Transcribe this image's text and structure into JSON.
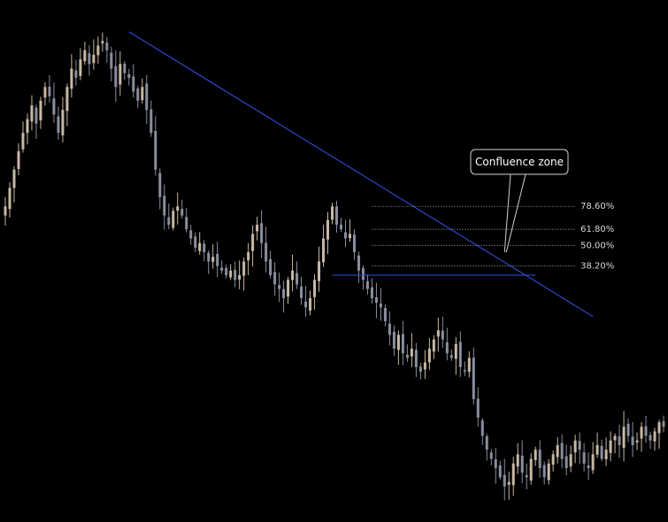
{
  "chart_data": {
    "type": "candlestick",
    "theme": {
      "background": "#000000",
      "bull_color": "#c8b8a4",
      "bear_color": "#8a8e9e",
      "trendline_color": "#2f47c9",
      "fib_color": "#cfcfcf"
    },
    "grid": false,
    "ylim": [
      0,
      100
    ],
    "x_count": 150,
    "closes": [
      62,
      66,
      70,
      74,
      78,
      81,
      84,
      80,
      85,
      88,
      86,
      82,
      78,
      83,
      88,
      92,
      90,
      94,
      96,
      93,
      95,
      97,
      98,
      96,
      92,
      88,
      93,
      91,
      90,
      87,
      85,
      88,
      83,
      78,
      70,
      64,
      60,
      58,
      61,
      62,
      60,
      57,
      55,
      53,
      54,
      52,
      50,
      51,
      49,
      48,
      47,
      48,
      46,
      47,
      50,
      52,
      56,
      58,
      54,
      50,
      47,
      45,
      44,
      42,
      46,
      48,
      45,
      42,
      40,
      42,
      46,
      50,
      55,
      59,
      62,
      58,
      57,
      55,
      56,
      52,
      48,
      46,
      44,
      42,
      41,
      40,
      37,
      34,
      31,
      34,
      30,
      29,
      31,
      27,
      26,
      28,
      31,
      33,
      35,
      33,
      30,
      29,
      32,
      27,
      26,
      29,
      20,
      16,
      12,
      9,
      7,
      5,
      3,
      1,
      2,
      6,
      8,
      4,
      3,
      7,
      9,
      5,
      3,
      6,
      8,
      10,
      7,
      5,
      8,
      11,
      9,
      6,
      5,
      8,
      10,
      7,
      9,
      11,
      12,
      10,
      14,
      12,
      10,
      11,
      14,
      12,
      11,
      13,
      15,
      14
    ],
    "trendline": {
      "from": {
        "x": 28,
        "y": 100
      },
      "to": {
        "x": 133,
        "y": 38
      }
    },
    "support_line": {
      "from": {
        "x": 74,
        "y": 47
      },
      "to": {
        "x": 120,
        "y": 47
      }
    },
    "fib_retracement": {
      "start_x": 83,
      "end_x": 129,
      "levels": [
        {
          "label": "78.60%",
          "y": 62.0
        },
        {
          "label": "61.80%",
          "y": 57.0
        },
        {
          "label": "50.00%",
          "y": 53.5
        },
        {
          "label": "38.20%",
          "y": 49.0
        }
      ]
    },
    "annotation": {
      "text": "Confluence zone",
      "x": 113,
      "y": 52
    }
  }
}
